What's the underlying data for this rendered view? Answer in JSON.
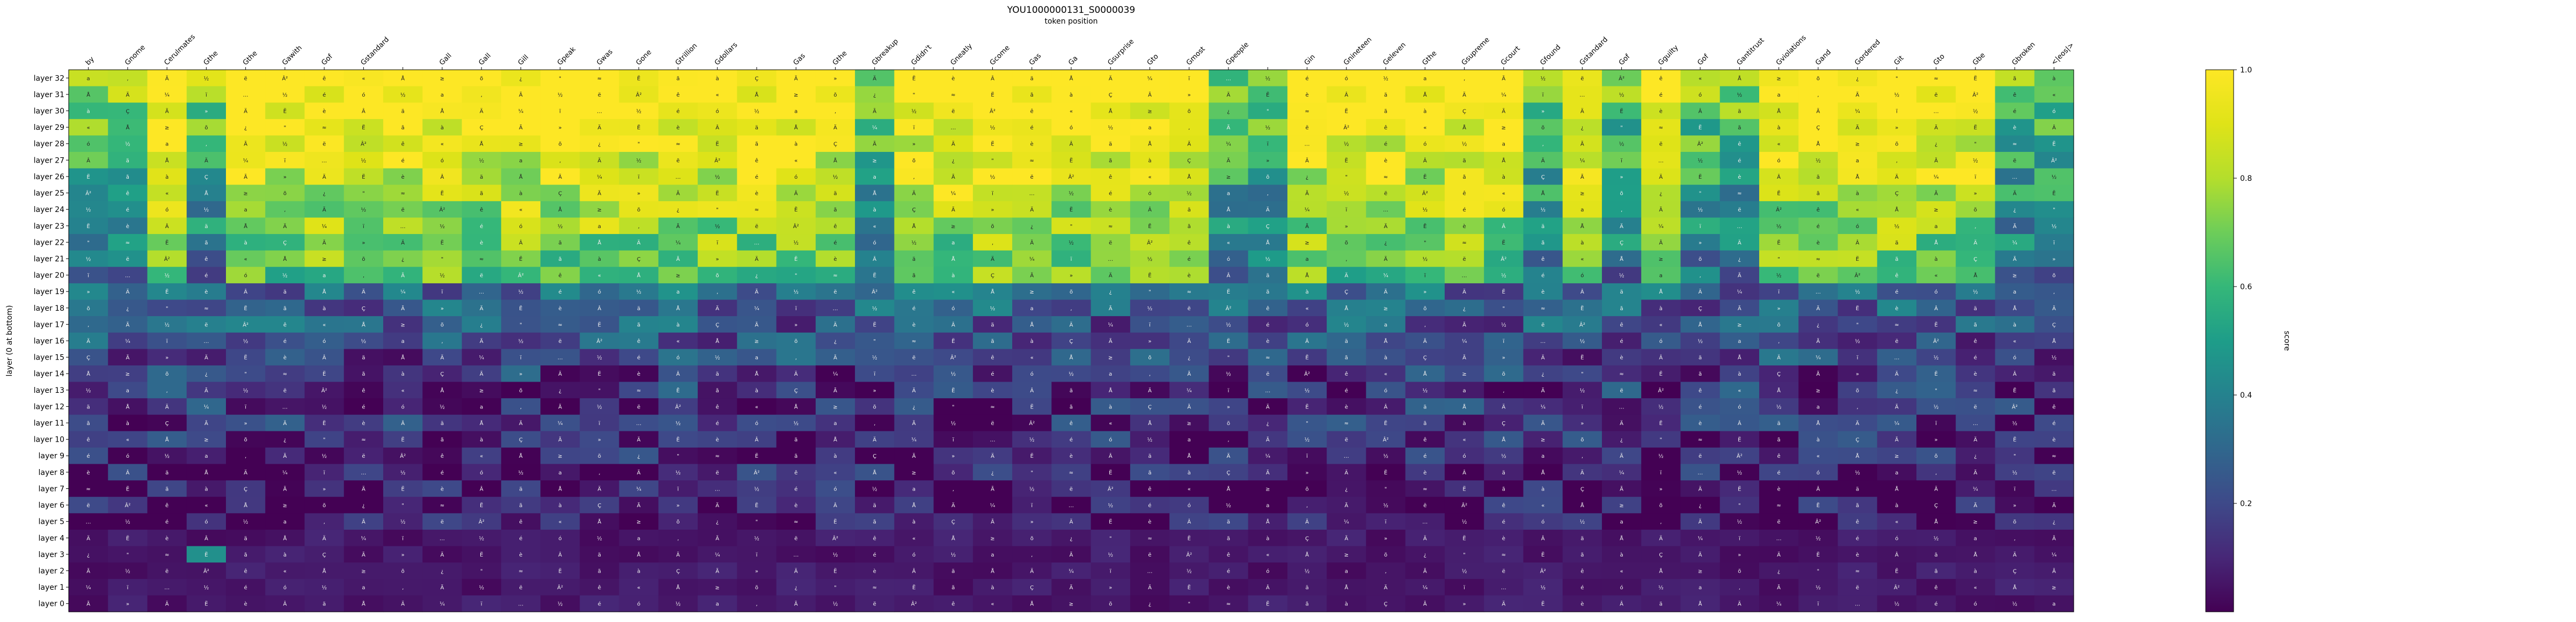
{
  "chart_data": {
    "type": "heatmap",
    "title": "YOU1000000131_S0000039",
    "xlabel": "token position",
    "ylabel": "layer (0 at bottom)",
    "colorbar": {
      "label": "score",
      "ticks": [
        "0.2",
        "0.4",
        "0.6",
        "0.8",
        "1.0"
      ],
      "range": [
        0.0,
        1.0
      ],
      "colormap": "viridis"
    },
    "x_tokens": [
      "by",
      "Gnome",
      "Cerulmates",
      "Gthe",
      "Gthe",
      "Gawith",
      "Gof",
      "Gstandard",
      ",",
      "Gall",
      "Gall",
      "Gill",
      "Gpeak",
      "Gwas",
      "Gone",
      "Gtrillion",
      "Gdollars",
      ".",
      "Gas",
      "Gthe",
      "Gbreakup",
      "Gdidn't",
      "Gneatly",
      "Gcome",
      "Gas",
      "Ga",
      "Gsurprise",
      "Gto",
      "Gmost",
      "Gpeople",
      ",",
      "Gin",
      "Gnineteen",
      "Geleven",
      "Gthe",
      "Gsupreme",
      "Gcourt",
      "Gfound",
      "Gstandard",
      "Gof",
      "Gguilty",
      "Gof",
      "Gantitrust",
      "Gviolations",
      "Gand",
      "Gordered",
      "Git",
      "Gto",
      "Gbe",
      "Gbroken",
      "<|eos|>"
    ],
    "layers": [
      "layer 32",
      "layer 31",
      "layer 30",
      "layer 29",
      "layer 28",
      "layer 27",
      "layer 26",
      "layer 25",
      "layer 24",
      "layer 23",
      "layer 22",
      "layer 21",
      "layer 20",
      "layer 19",
      "layer 18",
      "layer 17",
      "layer 16",
      "layer 15",
      "layer 14",
      "layer 13",
      "layer 12",
      "layer 11",
      "layer 10",
      "layer 9",
      "layer 8",
      "layer 7",
      "layer 6",
      "layer 5",
      "layer 4",
      "layer 3",
      "layer 2",
      "layer 1",
      "layer 0"
    ],
    "token_labels_shown": [
      "by",
      "Gnome",
      "Cerulmates",
      "Gthe",
      "Gthe",
      "Gawith",
      "Gof",
      "Gstandard",
      "",
      "Gall",
      "Gall",
      "Gill",
      "Gpeak",
      "Gwas",
      "Gone",
      "Gtrillion",
      "Gdollars",
      "",
      "Gas",
      "Gthe",
      "Gbreakup",
      "Gdidn't",
      "Gneatly",
      "Gcome",
      "Gas",
      "Ga",
      "Gsurprise",
      "Gto",
      "Gmost",
      "Gpeople",
      "",
      "Gin",
      "Gnineteen",
      "Geleven",
      "Gthe",
      "Gsupreme",
      "Gcourt",
      "Gfound",
      "Gstandard",
      "Gof",
      "Gguilty",
      "Gof",
      "Gantitrust",
      "Gviolations",
      "Gand",
      "Gordered",
      "Git",
      "Gto",
      "Gbe",
      "Gbroken",
      "<|eos|>"
    ]
  },
  "cell_glyphs": [
    "a",
    "Â",
    "\"",
    "‚",
    "ä",
    "≈",
    "Ã",
    "Å",
    "Ë",
    "½",
    "Ä",
    "ã",
    "ë",
    "¼",
    "à",
    "Â²",
    "ï",
    "Ç",
    "ê",
    "…",
    "Ã",
    "«",
    "½",
    "»",
    "Å",
    "é",
    "Ä",
    "≥",
    "ó",
    "Ë",
    "õ",
    "½",
    "è",
    "¿"
  ]
}
